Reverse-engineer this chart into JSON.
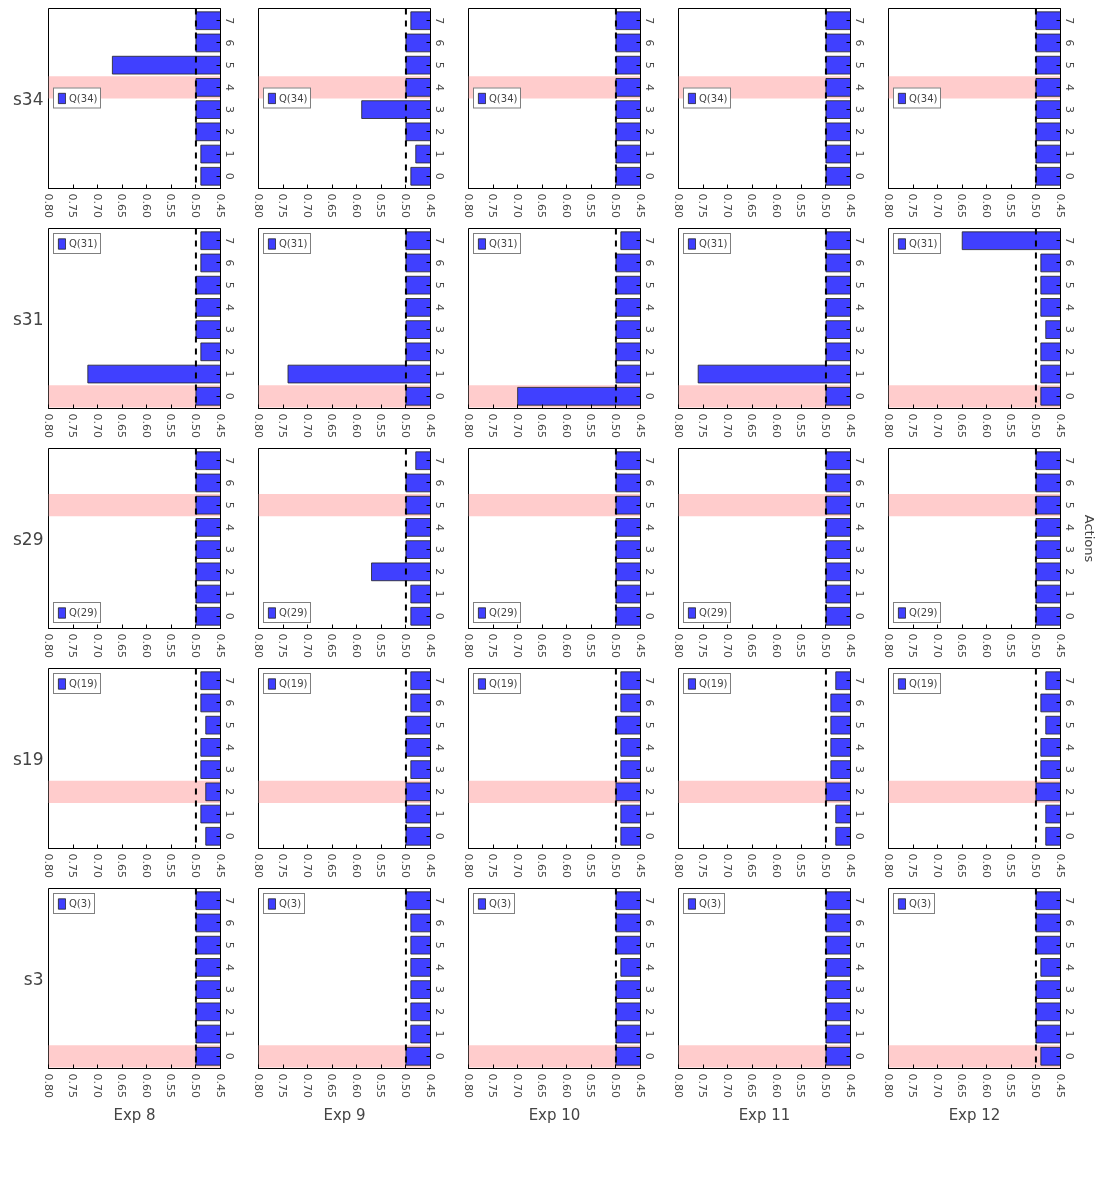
{
  "chart_data": [
    {
      "type": "bar",
      "orientation": "horizontal",
      "ylabel": "s34",
      "categories": [
        "7",
        "6",
        "5",
        "4",
        "3",
        "2",
        "1",
        "0"
      ],
      "series": [
        {
          "name": "Q(34)",
          "color": "#4040ff",
          "values": [
            0.5,
            0.5,
            0.67,
            0.5,
            0.5,
            0.5,
            0.49,
            0.49
          ]
        }
      ],
      "xlim": [
        0.8,
        0.45
      ],
      "xticks": [
        {
          "value": 0.8,
          "label": "0.80"
        },
        0.75,
        {
          "value": 0.7,
          "label": "0.70"
        },
        0.65,
        {
          "value": 0.6,
          "label": "0.60"
        },
        0.55,
        {
          "value": 0.5,
          "label": "0.50"
        },
        0.45
      ],
      "ref_lines": [
        {
          "axis": "x",
          "value": 0.5,
          "line_style": "dashed",
          "color": "#000000"
        }
      ],
      "bands": [
        {
          "axis": "y",
          "from": "4",
          "to": "4",
          "color": "#ffcccc"
        }
      ],
      "legend": "left"
    },
    {
      "type": "bar",
      "orientation": "horizontal",
      "categories": [
        "7",
        "6",
        "5",
        "4",
        "3",
        "2",
        "1",
        "0"
      ],
      "series": [
        {
          "name": "Q(34)",
          "color": "#4040ff",
          "values": [
            0.49,
            0.5,
            0.5,
            0.5,
            0.59,
            0.5,
            0.48,
            0.49
          ]
        }
      ],
      "xlim": [
        0.8,
        0.45
      ],
      "xticks": [
        {
          "value": 0.8,
          "label": "0.80"
        },
        0.75,
        {
          "value": 0.7,
          "label": "0.70"
        },
        0.65,
        {
          "value": 0.6,
          "label": "0.60"
        },
        0.55,
        {
          "value": 0.5,
          "label": "0.50"
        },
        0.45
      ],
      "ref_lines": [
        {
          "axis": "x",
          "value": 0.5,
          "line_style": "dashed",
          "color": "#000000"
        }
      ],
      "bands": [
        {
          "axis": "y",
          "from": "4",
          "to": "4",
          "color": "#ffcccc"
        }
      ],
      "legend": "left"
    },
    {
      "type": "bar",
      "orientation": "horizontal",
      "categories": [
        "7",
        "6",
        "5",
        "4",
        "3",
        "2",
        "1",
        "0"
      ],
      "series": [
        {
          "name": "Q(34)",
          "color": "#4040ff",
          "values": [
            0.5,
            0.5,
            0.5,
            0.5,
            0.5,
            0.5,
            0.5,
            0.5
          ]
        }
      ],
      "xlim": [
        0.8,
        0.45
      ],
      "xticks": [
        {
          "value": 0.8,
          "label": "0.80"
        },
        0.75,
        {
          "value": 0.7,
          "label": "0.70"
        },
        0.65,
        {
          "value": 0.6,
          "label": "0.60"
        },
        0.55,
        {
          "value": 0.5,
          "label": "0.50"
        },
        0.45
      ],
      "ref_lines": [
        {
          "axis": "x",
          "value": 0.5,
          "line_style": "dashed",
          "color": "#000000"
        }
      ],
      "bands": [
        {
          "axis": "y",
          "from": "4",
          "to": "4",
          "color": "#ffcccc"
        }
      ],
      "legend": "left"
    },
    {
      "type": "bar",
      "orientation": "horizontal",
      "categories": [
        "7",
        "6",
        "5",
        "4",
        "3",
        "2",
        "1",
        "0"
      ],
      "series": [
        {
          "name": "Q(34)",
          "color": "#4040ff",
          "values": [
            0.5,
            0.5,
            0.5,
            0.5,
            0.5,
            0.5,
            0.5,
            0.5
          ]
        }
      ],
      "xlim": [
        0.8,
        0.45
      ],
      "xticks": [
        {
          "value": 0.8,
          "label": "0.80"
        },
        0.75,
        {
          "value": 0.7,
          "label": "0.70"
        },
        0.65,
        {
          "value": 0.6,
          "label": "0.60"
        },
        0.55,
        {
          "value": 0.5,
          "label": "0.50"
        },
        0.45
      ],
      "ref_lines": [
        {
          "axis": "x",
          "value": 0.5,
          "line_style": "dashed",
          "color": "#000000"
        }
      ],
      "bands": [
        {
          "axis": "y",
          "from": "4",
          "to": "4",
          "color": "#ffcccc"
        }
      ],
      "legend": "left"
    },
    {
      "type": "bar",
      "orientation": "horizontal",
      "categories": [
        "7",
        "6",
        "5",
        "4",
        "3",
        "2",
        "1",
        "0"
      ],
      "series": [
        {
          "name": "Q(34)",
          "color": "#4040ff",
          "values": [
            0.5,
            0.5,
            0.5,
            0.5,
            0.5,
            0.5,
            0.5,
            0.5
          ]
        }
      ],
      "xlim": [
        0.8,
        0.45
      ],
      "xticks": [
        {
          "value": 0.8,
          "label": "0.80"
        },
        0.75,
        {
          "value": 0.7,
          "label": "0.70"
        },
        0.65,
        {
          "value": 0.6,
          "label": "0.60"
        },
        0.55,
        {
          "value": 0.5,
          "label": "0.50"
        },
        0.45
      ],
      "ref_lines": [
        {
          "axis": "x",
          "value": 0.5,
          "line_style": "dashed",
          "color": "#000000"
        }
      ],
      "bands": [
        {
          "axis": "y",
          "from": "4",
          "to": "4",
          "color": "#ffcccc"
        }
      ],
      "legend": "left"
    },
    {
      "type": "bar",
      "orientation": "horizontal",
      "ylabel": "s31",
      "categories": [
        "7",
        "6",
        "5",
        "4",
        "3",
        "2",
        "1",
        "0"
      ],
      "series": [
        {
          "name": "Q(31)",
          "color": "#4040ff",
          "values": [
            0.49,
            0.49,
            0.5,
            0.5,
            0.5,
            0.49,
            0.72,
            0.5
          ]
        }
      ],
      "xlim": [
        0.8,
        0.45
      ],
      "xticks": [
        {
          "value": 0.8,
          "label": "0.80"
        },
        0.75,
        {
          "value": 0.7,
          "label": "0.70"
        },
        0.65,
        {
          "value": 0.6,
          "label": "0.60"
        },
        0.55,
        {
          "value": 0.5,
          "label": "0.50"
        },
        0.45
      ],
      "ref_lines": [
        {
          "axis": "x",
          "value": 0.5,
          "line_style": "dashed",
          "color": "#000000"
        }
      ],
      "bands": [
        {
          "axis": "y",
          "from": "0",
          "to": "0",
          "color": "#ffcccc"
        }
      ],
      "legend": "top left"
    },
    {
      "type": "bar",
      "orientation": "horizontal",
      "categories": [
        "7",
        "6",
        "5",
        "4",
        "3",
        "2",
        "1",
        "0"
      ],
      "series": [
        {
          "name": "Q(31)",
          "color": "#4040ff",
          "values": [
            0.5,
            0.5,
            0.5,
            0.5,
            0.5,
            0.5,
            0.74,
            0.5
          ]
        }
      ],
      "xlim": [
        0.8,
        0.45
      ],
      "xticks": [
        {
          "value": 0.8,
          "label": "0.80"
        },
        0.75,
        {
          "value": 0.7,
          "label": "0.70"
        },
        0.65,
        {
          "value": 0.6,
          "label": "0.60"
        },
        0.55,
        {
          "value": 0.5,
          "label": "0.50"
        },
        0.45
      ],
      "ref_lines": [
        {
          "axis": "x",
          "value": 0.5,
          "line_style": "dashed",
          "color": "#000000"
        }
      ],
      "bands": [
        {
          "axis": "y",
          "from": "0",
          "to": "0",
          "color": "#ffcccc"
        }
      ],
      "legend": "top left"
    },
    {
      "type": "bar",
      "orientation": "horizontal",
      "categories": [
        "7",
        "6",
        "5",
        "4",
        "3",
        "2",
        "1",
        "0"
      ],
      "series": [
        {
          "name": "Q(31)",
          "color": "#4040ff",
          "values": [
            0.49,
            0.5,
            0.5,
            0.5,
            0.5,
            0.5,
            0.5,
            0.7
          ]
        }
      ],
      "xlim": [
        0.8,
        0.45
      ],
      "xticks": [
        {
          "value": 0.8,
          "label": "0.80"
        },
        0.75,
        {
          "value": 0.7,
          "label": "0.70"
        },
        0.65,
        {
          "value": 0.6,
          "label": "0.60"
        },
        0.55,
        {
          "value": 0.5,
          "label": "0.50"
        },
        0.45
      ],
      "ref_lines": [
        {
          "axis": "x",
          "value": 0.5,
          "line_style": "dashed",
          "color": "#000000"
        }
      ],
      "bands": [
        {
          "axis": "y",
          "from": "0",
          "to": "0",
          "color": "#ffcccc"
        }
      ],
      "legend": "top left"
    },
    {
      "type": "bar",
      "orientation": "horizontal",
      "categories": [
        "7",
        "6",
        "5",
        "4",
        "3",
        "2",
        "1",
        "0"
      ],
      "series": [
        {
          "name": "Q(31)",
          "color": "#4040ff",
          "values": [
            0.5,
            0.5,
            0.5,
            0.5,
            0.5,
            0.5,
            0.76,
            0.5
          ]
        }
      ],
      "xlim": [
        0.8,
        0.45
      ],
      "xticks": [
        {
          "value": 0.8,
          "label": "0.80"
        },
        0.75,
        {
          "value": 0.7,
          "label": "0.70"
        },
        0.65,
        {
          "value": 0.6,
          "label": "0.60"
        },
        0.55,
        {
          "value": 0.5,
          "label": "0.50"
        },
        0.45
      ],
      "ref_lines": [
        {
          "axis": "x",
          "value": 0.5,
          "line_style": "dashed",
          "color": "#000000"
        }
      ],
      "bands": [
        {
          "axis": "y",
          "from": "0",
          "to": "0",
          "color": "#ffcccc"
        }
      ],
      "legend": "top left"
    },
    {
      "type": "bar",
      "orientation": "horizontal",
      "categories": [
        "7",
        "6",
        "5",
        "4",
        "3",
        "2",
        "1",
        "0"
      ],
      "series": [
        {
          "name": "Q(31)",
          "color": "#4040ff",
          "values": [
            0.65,
            0.49,
            0.49,
            0.49,
            0.48,
            0.49,
            0.49,
            0.49
          ]
        }
      ],
      "xlim": [
        0.8,
        0.45
      ],
      "xticks": [
        {
          "value": 0.8,
          "label": "0.80"
        },
        0.75,
        {
          "value": 0.7,
          "label": "0.70"
        },
        0.65,
        {
          "value": 0.6,
          "label": "0.60"
        },
        0.55,
        {
          "value": 0.5,
          "label": "0.50"
        },
        0.45
      ],
      "ref_lines": [
        {
          "axis": "x",
          "value": 0.5,
          "line_style": "dashed",
          "color": "#000000"
        }
      ],
      "bands": [
        {
          "axis": "y",
          "from": "0",
          "to": "0",
          "color": "#ffcccc"
        }
      ],
      "legend": "top left"
    },
    {
      "type": "bar",
      "orientation": "horizontal",
      "ylabel": "s29",
      "categories": [
        "7",
        "6",
        "5",
        "4",
        "3",
        "2",
        "1",
        "0"
      ],
      "series": [
        {
          "name": "Q(29)",
          "color": "#4040ff",
          "values": [
            0.5,
            0.5,
            0.5,
            0.5,
            0.5,
            0.5,
            0.5,
            0.5
          ]
        }
      ],
      "xlim": [
        0.8,
        0.45
      ],
      "xticks": [
        {
          "value": 0.8,
          "label": "0.80"
        },
        0.75,
        {
          "value": 0.7,
          "label": "0.70"
        },
        0.65,
        {
          "value": 0.6,
          "label": "0.60"
        },
        0.55,
        {
          "value": 0.5,
          "label": "0.50"
        },
        0.45
      ],
      "ref_lines": [
        {
          "axis": "x",
          "value": 0.5,
          "line_style": "dashed",
          "color": "#000000"
        }
      ],
      "bands": [
        {
          "axis": "y",
          "from": "5",
          "to": "5",
          "color": "#ffcccc"
        }
      ],
      "legend": "bottom left"
    },
    {
      "type": "bar",
      "orientation": "horizontal",
      "categories": [
        "7",
        "6",
        "5",
        "4",
        "3",
        "2",
        "1",
        "0"
      ],
      "series": [
        {
          "name": "Q(29)",
          "color": "#4040ff",
          "values": [
            0.48,
            0.5,
            0.5,
            0.5,
            0.5,
            0.57,
            0.49,
            0.49
          ]
        }
      ],
      "xlim": [
        0.8,
        0.45
      ],
      "xticks": [
        {
          "value": 0.8,
          "label": "0.80"
        },
        0.75,
        {
          "value": 0.7,
          "label": "0.70"
        },
        0.65,
        {
          "value": 0.6,
          "label": "0.60"
        },
        0.55,
        {
          "value": 0.5,
          "label": "0.50"
        },
        0.45
      ],
      "ref_lines": [
        {
          "axis": "x",
          "value": 0.5,
          "line_style": "dashed",
          "color": "#000000"
        }
      ],
      "bands": [
        {
          "axis": "y",
          "from": "5",
          "to": "5",
          "color": "#ffcccc"
        }
      ],
      "legend": "bottom left"
    },
    {
      "type": "bar",
      "orientation": "horizontal",
      "categories": [
        "7",
        "6",
        "5",
        "4",
        "3",
        "2",
        "1",
        "0"
      ],
      "series": [
        {
          "name": "Q(29)",
          "color": "#4040ff",
          "values": [
            0.5,
            0.5,
            0.5,
            0.5,
            0.5,
            0.5,
            0.5,
            0.5
          ]
        }
      ],
      "xlim": [
        0.8,
        0.45
      ],
      "xticks": [
        {
          "value": 0.8,
          "label": "0.80"
        },
        0.75,
        {
          "value": 0.7,
          "label": "0.70"
        },
        0.65,
        {
          "value": 0.6,
          "label": "0.60"
        },
        0.55,
        {
          "value": 0.5,
          "label": "0.50"
        },
        0.45
      ],
      "ref_lines": [
        {
          "axis": "x",
          "value": 0.5,
          "line_style": "dashed",
          "color": "#000000"
        }
      ],
      "bands": [
        {
          "axis": "y",
          "from": "5",
          "to": "5",
          "color": "#ffcccc"
        }
      ],
      "legend": "bottom left"
    },
    {
      "type": "bar",
      "orientation": "horizontal",
      "categories": [
        "7",
        "6",
        "5",
        "4",
        "3",
        "2",
        "1",
        "0"
      ],
      "series": [
        {
          "name": "Q(29)",
          "color": "#4040ff",
          "values": [
            0.5,
            0.5,
            0.5,
            0.5,
            0.5,
            0.5,
            0.5,
            0.5
          ]
        }
      ],
      "xlim": [
        0.8,
        0.45
      ],
      "xticks": [
        {
          "value": 0.8,
          "label": "0.80"
        },
        0.75,
        {
          "value": 0.7,
          "label": "0.70"
        },
        0.65,
        {
          "value": 0.6,
          "label": "0.60"
        },
        0.55,
        {
          "value": 0.5,
          "label": "0.50"
        },
        0.45
      ],
      "ref_lines": [
        {
          "axis": "x",
          "value": 0.5,
          "line_style": "dashed",
          "color": "#000000"
        }
      ],
      "bands": [
        {
          "axis": "y",
          "from": "5",
          "to": "5",
          "color": "#ffcccc"
        }
      ],
      "legend": "bottom left"
    },
    {
      "type": "bar",
      "orientation": "horizontal",
      "y2label": "Actions",
      "categories": [
        "7",
        "6",
        "5",
        "4",
        "3",
        "2",
        "1",
        "0"
      ],
      "series": [
        {
          "name": "Q(29)",
          "color": "#4040ff",
          "values": [
            0.5,
            0.5,
            0.5,
            0.5,
            0.5,
            0.5,
            0.5,
            0.5
          ]
        }
      ],
      "xlim": [
        0.8,
        0.45
      ],
      "xticks": [
        {
          "value": 0.8,
          "label": "0.80"
        },
        0.75,
        {
          "value": 0.7,
          "label": "0.70"
        },
        0.65,
        {
          "value": 0.6,
          "label": "0.60"
        },
        0.55,
        {
          "value": 0.5,
          "label": "0.50"
        },
        0.45
      ],
      "ref_lines": [
        {
          "axis": "x",
          "value": 0.5,
          "line_style": "dashed",
          "color": "#000000"
        }
      ],
      "bands": [
        {
          "axis": "y",
          "from": "5",
          "to": "5",
          "color": "#ffcccc"
        }
      ],
      "legend": "bottom left"
    },
    {
      "type": "bar",
      "orientation": "horizontal",
      "ylabel": "s19",
      "categories": [
        "7",
        "6",
        "5",
        "4",
        "3",
        "2",
        "1",
        "0"
      ],
      "series": [
        {
          "name": "Q(19)",
          "color": "#4040ff",
          "values": [
            0.49,
            0.49,
            0.48,
            0.49,
            0.49,
            0.48,
            0.49,
            0.48
          ]
        }
      ],
      "xlim": [
        0.8,
        0.45
      ],
      "xticks": [
        {
          "value": 0.8,
          "label": "0.80"
        },
        0.75,
        {
          "value": 0.7,
          "label": "0.70"
        },
        0.65,
        {
          "value": 0.6,
          "label": "0.60"
        },
        0.55,
        {
          "value": 0.5,
          "label": "0.50"
        },
        0.45
      ],
      "ref_lines": [
        {
          "axis": "x",
          "value": 0.5,
          "line_style": "dashed",
          "color": "#000000"
        }
      ],
      "bands": [
        {
          "axis": "y",
          "from": "2",
          "to": "2",
          "color": "#ffcccc"
        }
      ],
      "legend": "top left"
    },
    {
      "type": "bar",
      "orientation": "horizontal",
      "categories": [
        "7",
        "6",
        "5",
        "4",
        "3",
        "2",
        "1",
        "0"
      ],
      "series": [
        {
          "name": "Q(19)",
          "color": "#4040ff",
          "values": [
            0.49,
            0.49,
            0.5,
            0.5,
            0.49,
            0.5,
            0.5,
            0.5
          ]
        }
      ],
      "xlim": [
        0.8,
        0.45
      ],
      "xticks": [
        {
          "value": 0.8,
          "label": "0.80"
        },
        0.75,
        {
          "value": 0.7,
          "label": "0.70"
        },
        0.65,
        {
          "value": 0.6,
          "label": "0.60"
        },
        0.55,
        {
          "value": 0.5,
          "label": "0.50"
        },
        0.45
      ],
      "ref_lines": [
        {
          "axis": "x",
          "value": 0.5,
          "line_style": "dashed",
          "color": "#000000"
        }
      ],
      "bands": [
        {
          "axis": "y",
          "from": "2",
          "to": "2",
          "color": "#ffcccc"
        }
      ],
      "legend": "top left"
    },
    {
      "type": "bar",
      "orientation": "horizontal",
      "categories": [
        "7",
        "6",
        "5",
        "4",
        "3",
        "2",
        "1",
        "0"
      ],
      "series": [
        {
          "name": "Q(19)",
          "color": "#4040ff",
          "values": [
            0.49,
            0.49,
            0.5,
            0.49,
            0.49,
            0.5,
            0.49,
            0.49
          ]
        }
      ],
      "xlim": [
        0.8,
        0.45
      ],
      "xticks": [
        {
          "value": 0.8,
          "label": "0.80"
        },
        0.75,
        {
          "value": 0.7,
          "label": "0.70"
        },
        0.65,
        {
          "value": 0.6,
          "label": "0.60"
        },
        0.55,
        {
          "value": 0.5,
          "label": "0.50"
        },
        0.45
      ],
      "ref_lines": [
        {
          "axis": "x",
          "value": 0.5,
          "line_style": "dashed",
          "color": "#000000"
        }
      ],
      "bands": [
        {
          "axis": "y",
          "from": "2",
          "to": "2",
          "color": "#ffcccc"
        }
      ],
      "legend": "top left"
    },
    {
      "type": "bar",
      "orientation": "horizontal",
      "categories": [
        "7",
        "6",
        "5",
        "4",
        "3",
        "2",
        "1",
        "0"
      ],
      "series": [
        {
          "name": "Q(19)",
          "color": "#4040ff",
          "values": [
            0.48,
            0.49,
            0.49,
            0.49,
            0.49,
            0.5,
            0.48,
            0.48
          ]
        }
      ],
      "xlim": [
        0.8,
        0.45
      ],
      "xticks": [
        {
          "value": 0.8,
          "label": "0.80"
        },
        0.75,
        {
          "value": 0.7,
          "label": "0.70"
        },
        0.65,
        {
          "value": 0.6,
          "label": "0.60"
        },
        0.55,
        {
          "value": 0.5,
          "label": "0.50"
        },
        0.45
      ],
      "ref_lines": [
        {
          "axis": "x",
          "value": 0.5,
          "line_style": "dashed",
          "color": "#000000"
        }
      ],
      "bands": [
        {
          "axis": "y",
          "from": "2",
          "to": "2",
          "color": "#ffcccc"
        }
      ],
      "legend": "top left"
    },
    {
      "type": "bar",
      "orientation": "horizontal",
      "categories": [
        "7",
        "6",
        "5",
        "4",
        "3",
        "2",
        "1",
        "0"
      ],
      "series": [
        {
          "name": "Q(19)",
          "color": "#4040ff",
          "values": [
            0.48,
            0.49,
            0.48,
            0.49,
            0.49,
            0.5,
            0.48,
            0.48
          ]
        }
      ],
      "xlim": [
        0.8,
        0.45
      ],
      "xticks": [
        {
          "value": 0.8,
          "label": "0.80"
        },
        0.75,
        {
          "value": 0.7,
          "label": "0.70"
        },
        0.65,
        {
          "value": 0.6,
          "label": "0.60"
        },
        0.55,
        {
          "value": 0.5,
          "label": "0.50"
        },
        0.45
      ],
      "ref_lines": [
        {
          "axis": "x",
          "value": 0.5,
          "line_style": "dashed",
          "color": "#000000"
        }
      ],
      "bands": [
        {
          "axis": "y",
          "from": "2",
          "to": "2",
          "color": "#ffcccc"
        }
      ],
      "legend": "top left"
    },
    {
      "type": "bar",
      "orientation": "horizontal",
      "ylabel": "s3",
      "xlabel": "Exp 8",
      "categories": [
        "7",
        "6",
        "5",
        "4",
        "3",
        "2",
        "1",
        "0"
      ],
      "series": [
        {
          "name": "Q(3)",
          "color": "#4040ff",
          "values": [
            0.5,
            0.5,
            0.5,
            0.5,
            0.5,
            0.5,
            0.5,
            0.5
          ]
        }
      ],
      "xlim": [
        0.8,
        0.45
      ],
      "xticks": [
        {
          "value": 0.8,
          "label": "0.80"
        },
        0.75,
        {
          "value": 0.7,
          "label": "0.70"
        },
        0.65,
        {
          "value": 0.6,
          "label": "0.60"
        },
        0.55,
        {
          "value": 0.5,
          "label": "0.50"
        },
        0.45
      ],
      "ref_lines": [
        {
          "axis": "x",
          "value": 0.5,
          "line_style": "dashed",
          "color": "#000000"
        }
      ],
      "bands": [
        {
          "axis": "y",
          "from": "0",
          "to": "0",
          "color": "#ffcccc"
        }
      ],
      "legend": "top left"
    },
    {
      "type": "bar",
      "orientation": "horizontal",
      "xlabel": "Exp 9",
      "categories": [
        "7",
        "6",
        "5",
        "4",
        "3",
        "2",
        "1",
        "0"
      ],
      "series": [
        {
          "name": "Q(3)",
          "color": "#4040ff",
          "values": [
            0.5,
            0.49,
            0.49,
            0.49,
            0.49,
            0.49,
            0.49,
            0.5
          ]
        }
      ],
      "xlim": [
        0.8,
        0.45
      ],
      "xticks": [
        {
          "value": 0.8,
          "label": "0.80"
        },
        0.75,
        {
          "value": 0.7,
          "label": "0.70"
        },
        0.65,
        {
          "value": 0.6,
          "label": "0.60"
        },
        0.55,
        {
          "value": 0.5,
          "label": "0.50"
        },
        0.45
      ],
      "ref_lines": [
        {
          "axis": "x",
          "value": 0.5,
          "line_style": "dashed",
          "color": "#000000"
        }
      ],
      "bands": [
        {
          "axis": "y",
          "from": "0",
          "to": "0",
          "color": "#ffcccc"
        }
      ],
      "legend": "top left"
    },
    {
      "type": "bar",
      "orientation": "horizontal",
      "xlabel": "Exp 10",
      "categories": [
        "7",
        "6",
        "5",
        "4",
        "3",
        "2",
        "1",
        "0"
      ],
      "series": [
        {
          "name": "Q(3)",
          "color": "#4040ff",
          "values": [
            0.5,
            0.5,
            0.5,
            0.49,
            0.5,
            0.5,
            0.5,
            0.5
          ]
        }
      ],
      "xlim": [
        0.8,
        0.45
      ],
      "xticks": [
        {
          "value": 0.8,
          "label": "0.80"
        },
        0.75,
        {
          "value": 0.7,
          "label": "0.70"
        },
        0.65,
        {
          "value": 0.6,
          "label": "0.60"
        },
        0.55,
        {
          "value": 0.5,
          "label": "0.50"
        },
        0.45
      ],
      "ref_lines": [
        {
          "axis": "x",
          "value": 0.5,
          "line_style": "dashed",
          "color": "#000000"
        }
      ],
      "bands": [
        {
          "axis": "y",
          "from": "0",
          "to": "0",
          "color": "#ffcccc"
        }
      ],
      "legend": "top left"
    },
    {
      "type": "bar",
      "orientation": "horizontal",
      "xlabel": "Exp 11",
      "categories": [
        "7",
        "6",
        "5",
        "4",
        "3",
        "2",
        "1",
        "0"
      ],
      "series": [
        {
          "name": "Q(3)",
          "color": "#4040ff",
          "values": [
            0.5,
            0.5,
            0.5,
            0.5,
            0.5,
            0.5,
            0.5,
            0.5
          ]
        }
      ],
      "xlim": [
        0.8,
        0.45
      ],
      "xticks": [
        {
          "value": 0.8,
          "label": "0.80"
        },
        0.75,
        {
          "value": 0.7,
          "label": "0.70"
        },
        0.65,
        {
          "value": 0.6,
          "label": "0.60"
        },
        0.55,
        {
          "value": 0.5,
          "label": "0.50"
        },
        0.45
      ],
      "ref_lines": [
        {
          "axis": "x",
          "value": 0.5,
          "line_style": "dashed",
          "color": "#000000"
        }
      ],
      "bands": [
        {
          "axis": "y",
          "from": "0",
          "to": "0",
          "color": "#ffcccc"
        }
      ],
      "legend": "top left"
    },
    {
      "type": "bar",
      "orientation": "horizontal",
      "xlabel": "Exp 12",
      "categories": [
        "7",
        "6",
        "5",
        "4",
        "3",
        "2",
        "1",
        "0"
      ],
      "series": [
        {
          "name": "Q(3)",
          "color": "#4040ff",
          "values": [
            0.5,
            0.5,
            0.5,
            0.49,
            0.5,
            0.5,
            0.5,
            0.49
          ]
        }
      ],
      "xlim": [
        0.8,
        0.45
      ],
      "xticks": [
        {
          "value": 0.8,
          "label": "0.80"
        },
        0.75,
        {
          "value": 0.7,
          "label": "0.70"
        },
        0.65,
        {
          "value": 0.6,
          "label": "0.60"
        },
        0.55,
        {
          "value": 0.5,
          "label": "0.50"
        },
        0.45
      ],
      "ref_lines": [
        {
          "axis": "x",
          "value": 0.5,
          "line_style": "dashed",
          "color": "#000000"
        }
      ],
      "bands": [
        {
          "axis": "y",
          "from": "0",
          "to": "0",
          "color": "#ffcccc"
        }
      ],
      "legend": "top left"
    }
  ]
}
